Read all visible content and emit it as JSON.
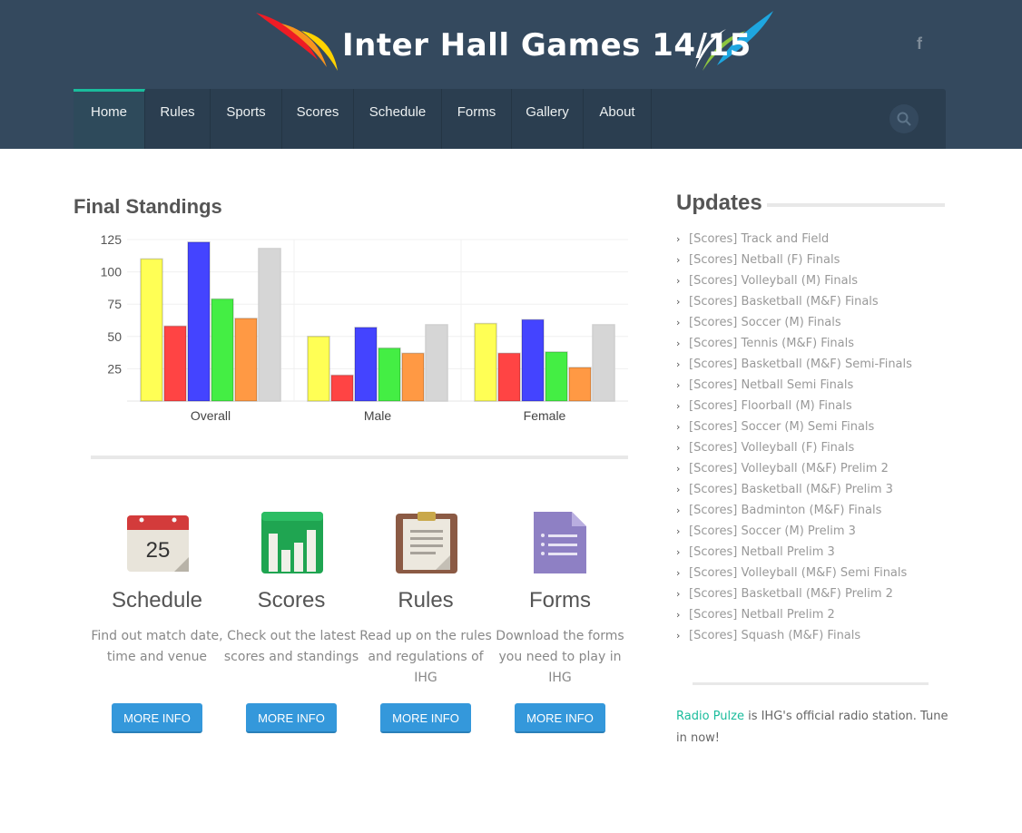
{
  "header": {
    "logo_title": "Inter Hall Games 14/15",
    "social_icon": "facebook-icon",
    "social_glyph": "f"
  },
  "nav": {
    "items": [
      "Home",
      "Rules",
      "Sports",
      "Scores",
      "Schedule",
      "Forms",
      "Gallery",
      "About"
    ],
    "active": "Home",
    "search_icon": "search-icon"
  },
  "standings": {
    "title": "Final Standings"
  },
  "chart_data": {
    "type": "bar",
    "categories": [
      "Overall",
      "Male",
      "Female"
    ],
    "series": [
      {
        "color": "#ffff55",
        "values": [
          110,
          50,
          60
        ]
      },
      {
        "color": "#ff4444",
        "values": [
          58,
          20,
          37
        ]
      },
      {
        "color": "#4444ff",
        "values": [
          123,
          57,
          63
        ]
      },
      {
        "color": "#44ee44",
        "values": [
          79,
          41,
          38
        ]
      },
      {
        "color": "#ff9944",
        "values": [
          64,
          37,
          26
        ]
      },
      {
        "color": "#d6d6d6",
        "values": [
          118,
          59,
          59
        ]
      }
    ],
    "yticks": [
      25,
      50,
      75,
      100,
      125
    ],
    "ylim": [
      0,
      125
    ],
    "grid": true
  },
  "features": [
    {
      "icon": "calendar-icon",
      "icon_text": "25",
      "title": "Schedule",
      "desc": "Find out match date, time and venue",
      "button": "MORE INFO"
    },
    {
      "icon": "bar-chart-icon",
      "title": "Scores",
      "desc": "Check out the latest scores and standings",
      "button": "MORE INFO"
    },
    {
      "icon": "clipboard-icon",
      "title": "Rules",
      "desc": "Read up on the rules and regulations of IHG",
      "button": "MORE INFO"
    },
    {
      "icon": "document-icon",
      "title": "Forms",
      "desc": "Download the forms you need to play in IHG",
      "button": "MORE INFO"
    }
  ],
  "updates": {
    "title": "Updates",
    "items": [
      "[Scores] Track and Field",
      "[Scores] Netball (F) Finals",
      "[Scores] Volleyball (M) Finals",
      "[Scores] Basketball (M&F) Finals",
      "[Scores] Soccer (M) Finals",
      "[Scores] Tennis (M&F) Finals",
      "[Scores] Basketball (M&F) Semi-Finals",
      "[Scores] Netball Semi Finals",
      "[Scores] Floorball (M) Finals",
      "[Scores] Soccer (M) Semi Finals",
      "[Scores] Volleyball (F) Finals",
      "[Scores] Volleyball (M&F) Prelim 2",
      "[Scores] Basketball (M&F) Prelim 3",
      "[Scores] Badminton (M&F) Finals",
      "[Scores] Soccer (M) Prelim 3",
      "[Scores] Netball Prelim 3",
      "[Scores] Volleyball (M&F) Semi Finals",
      "[Scores] Basketball (M&F) Prelim 2",
      "[Scores] Netball Prelim 2",
      "[Scores] Squash (M&F) Finals"
    ]
  },
  "radio": {
    "link": "Radio Pulze",
    "text": " is IHG's official radio station. Tune in now!"
  },
  "colors": {
    "header_bg": "#34495e",
    "nav_bg": "#2b3e50",
    "accent": "#1abc9c",
    "button": "#3498db"
  }
}
